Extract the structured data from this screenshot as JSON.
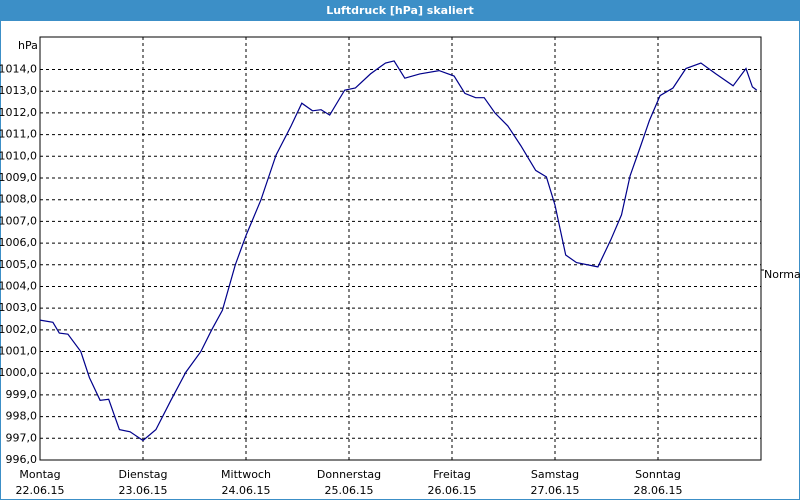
{
  "chart_data": {
    "type": "line",
    "title": "Luftdruck [hPa] skaliert",
    "y_unit": "hPa",
    "x": [
      0,
      3,
      4.5,
      6.5,
      9.5,
      11.5,
      14,
      16,
      18.5,
      21,
      24,
      27,
      30.5,
      34,
      37.5,
      40,
      42.5,
      45.5,
      48,
      51.5,
      55,
      58.5,
      61,
      63.5,
      65.5,
      67.5,
      71,
      73.5,
      77,
      80.5,
      82.5,
      85,
      88.5,
      93,
      96.5,
      99,
      101.5,
      103.5,
      106,
      109,
      112,
      115.5,
      118,
      120,
      122.5,
      125,
      130,
      133,
      135.5,
      137.5,
      140,
      142,
      144.5,
      147.5,
      150.5,
      154,
      157.5,
      161.5,
      164.5,
      166,
      167
    ],
    "series": [
      {
        "name": "Normal",
        "color": "#00008b",
        "values": [
          1002.45,
          1002.35,
          1001.85,
          1001.8,
          1001.0,
          999.8,
          998.75,
          998.8,
          997.4,
          997.3,
          996.9,
          997.4,
          998.75,
          1000.05,
          1001.0,
          1002.0,
          1002.9,
          1005.0,
          1006.35,
          1008.0,
          1010.05,
          1011.4,
          1012.45,
          1012.1,
          1012.15,
          1011.9,
          1013.05,
          1013.15,
          1013.8,
          1014.3,
          1014.4,
          1013.6,
          1013.8,
          1013.95,
          1013.7,
          1012.9,
          1012.7,
          1012.7,
          1012.0,
          1011.4,
          1010.5,
          1009.35,
          1009.05,
          1007.75,
          1005.45,
          1005.1,
          1004.9,
          1006.15,
          1007.3,
          1009.1,
          1010.5,
          1011.65,
          1012.8,
          1013.15,
          1014.05,
          1014.3,
          1013.8,
          1013.25,
          1014.05,
          1013.2,
          1013.05
        ]
      }
    ],
    "xlim": [
      0,
      168
    ],
    "xticks": [
      {
        "value": 0,
        "label": "Montag",
        "date": "22.06.15"
      },
      {
        "value": 24,
        "label": "Dienstag",
        "date": "23.06.15"
      },
      {
        "value": 48,
        "label": "Mittwoch",
        "date": "24.06.15"
      },
      {
        "value": 72,
        "label": "Donnerstag",
        "date": "25.06.15"
      },
      {
        "value": 96,
        "label": "Freitag",
        "date": "26.06.15"
      },
      {
        "value": 120,
        "label": "Samstag",
        "date": "27.06.15"
      },
      {
        "value": 144,
        "label": "Sonntag",
        "date": "28.06.15"
      }
    ],
    "ylim": [
      996,
      1015.5
    ],
    "yticks": [
      {
        "value": 996,
        "label": "996,0"
      },
      {
        "value": 997,
        "label": "997,0"
      },
      {
        "value": 998,
        "label": "998,0"
      },
      {
        "value": 999,
        "label": "999,0"
      },
      {
        "value": 1000,
        "label": "1000,0"
      },
      {
        "value": 1001,
        "label": "1001,0"
      },
      {
        "value": 1002,
        "label": "1002,0"
      },
      {
        "value": 1003,
        "label": "1003,0"
      },
      {
        "value": 1004,
        "label": "1004,0"
      },
      {
        "value": 1005,
        "label": "1005,0"
      },
      {
        "value": 1006,
        "label": "1006,0"
      },
      {
        "value": 1007,
        "label": "1007,0"
      },
      {
        "value": 1008,
        "label": "1008,0"
      },
      {
        "value": 1009,
        "label": "1009,0"
      },
      {
        "value": 1010,
        "label": "1010,0"
      },
      {
        "value": 1011,
        "label": "1011,0"
      },
      {
        "value": 1012,
        "label": "1012,0"
      },
      {
        "value": 1013,
        "label": "1013,0"
      },
      {
        "value": 1014,
        "label": "1014,0"
      }
    ],
    "grid": true
  }
}
